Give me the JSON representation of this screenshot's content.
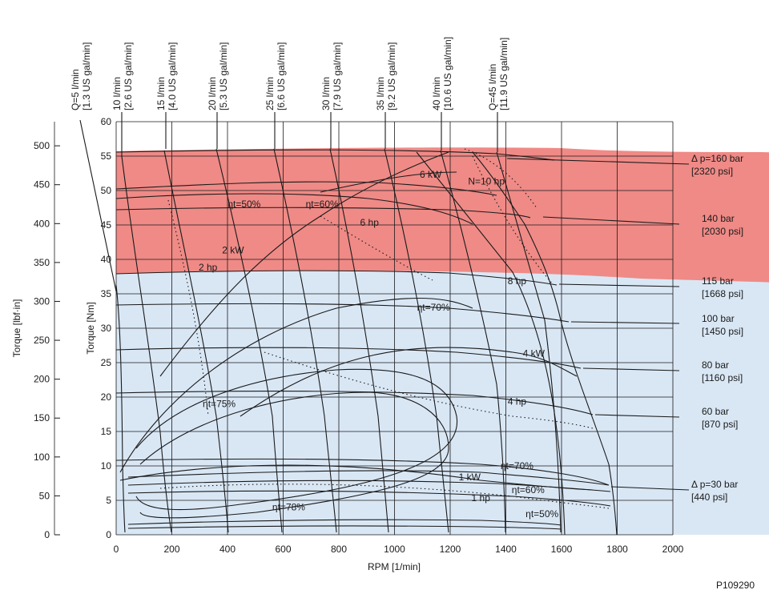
{
  "figure_id": "P109290",
  "colors": {
    "high_pressure_zone": "#ef8a86",
    "continuous_zone": "#d9e7f5",
    "lines": "#1a1a1a"
  },
  "chart_data": {
    "type": "line",
    "xlabel": "RPM [1/min]",
    "ylabel_primary": "Torque [Nm]",
    "ylabel_secondary": "Torque [lbf·in]",
    "xlim": [
      0,
      2000
    ],
    "ylim": [
      0,
      60
    ],
    "ylim_secondary": [
      0,
      531
    ],
    "x_ticks": [
      "0",
      "200",
      "400",
      "600",
      "800",
      "1000",
      "1200",
      "1400",
      "1600",
      "1800",
      "2000"
    ],
    "y_ticks": [
      "0",
      "5",
      "10",
      "15",
      "20",
      "25",
      "30",
      "35",
      "40",
      "45",
      "50",
      "55",
      "60"
    ],
    "y2_ticks": [
      "0",
      "50",
      "100",
      "150",
      "200",
      "250",
      "300",
      "350",
      "400",
      "450",
      "500"
    ],
    "grid": true,
    "flow_lines": [
      {
        "label": "Q=5 l/min",
        "sublabel": "[1.3 US gal/min]",
        "x_top": 25,
        "x_bottom": 40
      },
      {
        "label": "10 l/min",
        "sublabel": "[2.6 US gal/min]",
        "x_top": 110,
        "x_bottom": 200
      },
      {
        "label": "15 l/min",
        "sublabel": "[4.0 US gal/min]",
        "x_top": 190,
        "x_bottom": 380
      },
      {
        "label": "20 l/min",
        "sublabel": "[5.3 US gal/min]",
        "x_top": 350,
        "x_bottom": 580
      },
      {
        "label": "25 l/min",
        "sublabel": "[6.6 US gal/min]",
        "x_top": 540,
        "x_bottom": 780
      },
      {
        "label": "30 l/min",
        "sublabel": "[7.9 US gal/min]",
        "x_top": 760,
        "x_bottom": 980
      },
      {
        "label": "35 l/min",
        "sublabel": "[9.2 US gal/min]",
        "x_top": 960,
        "x_bottom": 1180
      },
      {
        "label": "40 l/min",
        "sublabel": "[10.6 US gal/min]",
        "x_top": 1160,
        "x_bottom": 1390
      },
      {
        "label": "Q=45 l/min",
        "sublabel": "[11.9 US gal/min]",
        "x_top": 1370,
        "x_bottom": 1590
      }
    ],
    "pressure_lines": [
      {
        "label": "Δ p=160 bar",
        "sublabel": "[2320 psi]",
        "torque_at_0": 54.5,
        "arrow_at": [
          1340,
          54
        ]
      },
      {
        "label": "140 bar",
        "sublabel": "[2030 psi]",
        "torque_at_0": 46.5,
        "arrow_at": [
          1500,
          45
        ]
      },
      {
        "label": "115 bar",
        "sublabel": "[1668 psi]",
        "torque_at_0": 37.5,
        "arrow_at": [
          1560,
          36
        ]
      },
      {
        "label": "100 bar",
        "sublabel": "[1450 psi]",
        "torque_at_0": 33.5,
        "arrow_at": [
          1600,
          31
        ]
      },
      {
        "label": "80 bar",
        "sublabel": "[1160 psi]",
        "torque_at_0": 26.5,
        "arrow_at": [
          1650,
          24
        ]
      },
      {
        "label": "60 bar",
        "sublabel": "[870 psi]",
        "torque_at_0": 20.5,
        "arrow_at": [
          1700,
          17
        ]
      },
      {
        "label": "Δ p=30 bar",
        "sublabel": "[440 psi]",
        "torque_at_0": 10.5,
        "arrow_at": [
          1750,
          7.5
        ]
      }
    ],
    "power_curves": [
      {
        "label": "1 kW",
        "x": 1270,
        "y": 8
      },
      {
        "label": "2 kW",
        "x": 420,
        "y": 41
      },
      {
        "label": "4 kW",
        "x": 1500,
        "y": 26
      },
      {
        "label": "6 kW",
        "x": 1130,
        "y": 52
      },
      {
        "label": "1 hp",
        "x": 1310,
        "y": 5
      },
      {
        "label": "2 hp",
        "x": 330,
        "y": 38.5
      },
      {
        "label": "4 hp",
        "x": 1440,
        "y": 19
      },
      {
        "label": "6 hp",
        "x": 910,
        "y": 45
      },
      {
        "label": "8 hp",
        "x": 1440,
        "y": 36.5
      },
      {
        "label": "N=10 hp",
        "x": 1330,
        "y": 51
      }
    ],
    "efficiency_labels": [
      {
        "label": "ηt=50%",
        "x": 460,
        "y": 48
      },
      {
        "label": "ηt=60%",
        "x": 740,
        "y": 48
      },
      {
        "label": "ηt=70%",
        "x": 1140,
        "y": 33
      },
      {
        "label": "ηt=75%",
        "x": 370,
        "y": 19
      },
      {
        "label": "ηt=78%",
        "x": 620,
        "y": 4
      },
      {
        "label": "ηt=70%",
        "x": 1440,
        "y": 10
      },
      {
        "label": "ηt=60%",
        "x": 1480,
        "y": 6.5
      },
      {
        "label": "ηt=50%",
        "x": 1530,
        "y": 3
      }
    ]
  }
}
